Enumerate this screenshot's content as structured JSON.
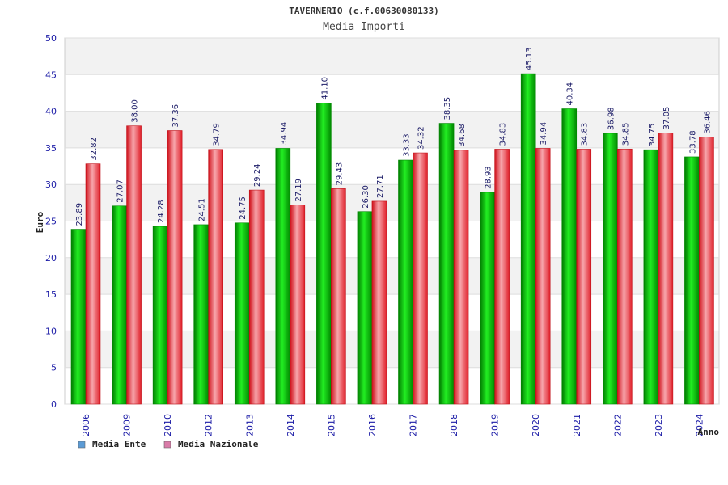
{
  "chart_data": {
    "type": "bar",
    "title": "TAVERNERIO (c.f.00630080133)",
    "subtitle": "Media Importi",
    "xlabel": "Anno",
    "ylabel": "Euro",
    "ylim": [
      0,
      50
    ],
    "yticks": [
      0,
      5,
      10,
      15,
      20,
      25,
      30,
      35,
      40,
      45,
      50
    ],
    "grid": true,
    "legend_position": "bottom-left",
    "categories": [
      "2006",
      "2009",
      "2010",
      "2012",
      "2013",
      "2014",
      "2015",
      "2016",
      "2017",
      "2018",
      "2019",
      "2020",
      "2021",
      "2022",
      "2023",
      "2024"
    ],
    "series": [
      {
        "name": "Media Ente",
        "color": "#00b400",
        "legend_color": "#5b9bd5",
        "values": [
          23.89,
          27.07,
          24.28,
          24.51,
          24.75,
          34.94,
          41.1,
          26.3,
          33.33,
          38.35,
          28.93,
          45.13,
          40.34,
          36.98,
          34.75,
          33.78
        ],
        "labels": [
          "23.89",
          "27.07",
          "24.28",
          "24.51",
          "24.75",
          "34.94",
          "41.10",
          "26.30",
          "33.33",
          "38.35",
          "28.93",
          "45.13",
          "40.34",
          "36.98",
          "34.75",
          "33.78"
        ]
      },
      {
        "name": "Media Nazionale",
        "color": "#e8202a",
        "legend_color": "#d97ba8",
        "values": [
          32.82,
          38.0,
          37.36,
          34.79,
          29.24,
          27.19,
          29.43,
          27.71,
          34.32,
          34.68,
          34.83,
          34.94,
          34.83,
          34.85,
          37.05,
          36.46
        ],
        "labels": [
          "32.82",
          "38.00",
          "37.36",
          "34.79",
          "29.24",
          "27.19",
          "29.43",
          "27.71",
          "34.32",
          "34.68",
          "34.83",
          "34.94",
          "34.83",
          "34.85",
          "37.05",
          "36.46"
        ]
      }
    ]
  }
}
